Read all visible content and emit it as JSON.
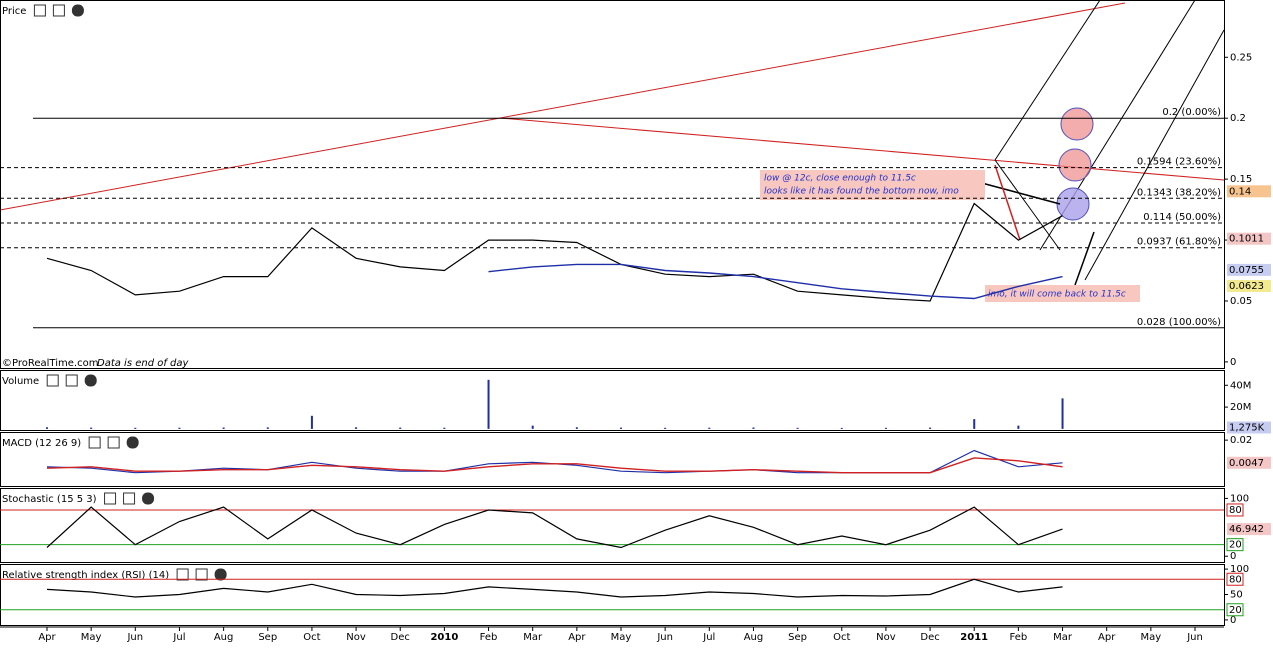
{
  "chart_data": [
    {
      "type": "line",
      "title": "Price",
      "source": "©ProRealTime.com",
      "note": "Data is end of day",
      "categories": [
        "Apr",
        "May",
        "Jun",
        "Jul",
        "Aug",
        "Sep",
        "Oct",
        "Nov",
        "Dec",
        "2010",
        "Feb",
        "Mar",
        "Apr",
        "May",
        "Jun",
        "Jul",
        "Aug",
        "Sep",
        "Oct",
        "Nov",
        "Dec",
        "2011",
        "Feb",
        "Mar",
        "Apr",
        "May",
        "Jun"
      ],
      "ylim": [
        -0.005,
        0.297
      ],
      "yticks": [
        0,
        0.05,
        0.1,
        0.15,
        0.2,
        0.25
      ],
      "series": [
        {
          "color": "#000000",
          "values": [
            0.085,
            0.075,
            0.055,
            0.058,
            0.07,
            0.07,
            0.11,
            0.085,
            0.078,
            0.075,
            0.1,
            0.1,
            0.098,
            0.08,
            0.072,
            0.07,
            0.072,
            0.058,
            0.055,
            0.052,
            0.05,
            0.13,
            0.1,
            0.12,
            null,
            null,
            null
          ]
        },
        {
          "color": "#1f2fa8",
          "values": [
            null,
            null,
            null,
            null,
            null,
            null,
            null,
            null,
            null,
            null,
            0.074,
            0.078,
            0.08,
            0.08,
            0.075,
            0.073,
            0.07,
            0.065,
            0.06,
            0.057,
            0.054,
            0.052,
            0.062,
            0.07,
            null,
            null,
            null
          ]
        }
      ],
      "fib_levels": [
        {
          "value": 0.2,
          "label": "0.2 (0.00%)"
        },
        {
          "value": 0.1594,
          "label": "0.1594 (23.60%)"
        },
        {
          "value": 0.1343,
          "label": "0.1343 (38.20%)"
        },
        {
          "value": 0.114,
          "label": "0.114 (50.00%)"
        },
        {
          "value": 0.0937,
          "label": "0.0937 (61.80%)"
        },
        {
          "value": 0.028,
          "label": "0.028 (100.00%)"
        }
      ],
      "last_values": [
        {
          "value": 0.14,
          "color": "#f7c48f"
        },
        {
          "value": 0.1011,
          "color": "#f4c6c6"
        },
        {
          "value": 0.0755,
          "color": "#c7cdf2"
        },
        {
          "value": 0.0623,
          "color": "#f3e98f"
        }
      ],
      "annotations": [
        "low @ 12c, close enough to 11.5c",
        "looks like it has found the bottom now, imo",
        "imo, it will come back to 11.5c"
      ]
    },
    {
      "type": "bar",
      "title": "Volume",
      "color": "#1f2fa8",
      "values": [
        1500000,
        1200000,
        1000000,
        1100000,
        1300000,
        1400000,
        12000000,
        1500000,
        1200000,
        1100000,
        45000000,
        3000000,
        1500000,
        1200000,
        1000000,
        1100000,
        1300000,
        1000000,
        900000,
        1000000,
        1200000,
        9000000,
        3000000,
        28000000,
        null,
        null,
        null
      ],
      "ylim": [
        -1000000,
        54000000
      ],
      "yticks": [
        {
          "value": 20000000,
          "label": "20M"
        },
        {
          "value": 40000000,
          "label": "40M"
        }
      ],
      "last_values": [
        {
          "value": 1275000,
          "label": "1,275K",
          "color": "#c7cdf2"
        }
      ]
    },
    {
      "type": "line",
      "title": "MACD (12 26 9)",
      "ylim": [
        -0.011,
        0.0255
      ],
      "yticks": [
        0.02
      ],
      "series": [
        {
          "color": "#1f2fa8",
          "values": [
            0.002,
            0.001,
            -0.002,
            -0.001,
            0.001,
            0.0,
            0.005,
            0.001,
            -0.001,
            -0.001,
            0.004,
            0.005,
            0.003,
            -0.001,
            -0.002,
            -0.001,
            0.0,
            -0.002,
            -0.002,
            -0.002,
            -0.002,
            0.013,
            0.002,
            0.0047,
            null,
            null,
            null
          ]
        },
        {
          "color": "#d02020",
          "values": [
            0.001,
            0.002,
            -0.001,
            -0.001,
            0.0,
            0.0,
            0.003,
            0.002,
            0.0,
            -0.001,
            0.002,
            0.004,
            0.004,
            0.001,
            -0.001,
            -0.001,
            0.0,
            -0.001,
            -0.002,
            -0.002,
            -0.002,
            0.008,
            0.006,
            0.002,
            null,
            null,
            null
          ]
        }
      ],
      "last_values": [
        {
          "value": 0.0047,
          "color": "#f4c6c6"
        }
      ]
    },
    {
      "type": "line",
      "title": "Stochastic (15 5 3)",
      "ylim": [
        -10,
        118
      ],
      "yticks": [
        0,
        100
      ],
      "hlines": [
        {
          "value": 80,
          "color": "#d02020"
        },
        {
          "value": 20,
          "color": "#20a020"
        }
      ],
      "series": [
        {
          "color": "#000000",
          "values": [
            15,
            85,
            20,
            60,
            85,
            30,
            80,
            40,
            20,
            55,
            80,
            75,
            30,
            15,
            45,
            70,
            50,
            20,
            35,
            20,
            45,
            85,
            20,
            46.942,
            null,
            null,
            null
          ]
        }
      ],
      "last_values": [
        {
          "value": 46.942,
          "color": "#f4c6c6"
        }
      ]
    },
    {
      "type": "line",
      "title": "Relative strength index (RSI) (14)",
      "ylim": [
        -10,
        110
      ],
      "yticks": [
        0,
        50,
        100
      ],
      "hlines": [
        {
          "value": 80,
          "color": "#d02020"
        },
        {
          "value": 20,
          "color": "#20a020"
        }
      ],
      "series": [
        {
          "color": "#000000",
          "values": [
            60,
            55,
            45,
            50,
            62,
            55,
            70,
            50,
            48,
            52,
            65,
            60,
            55,
            45,
            48,
            55,
            52,
            45,
            48,
            47,
            50,
            80,
            55,
            65,
            null,
            null,
            null
          ]
        }
      ]
    }
  ]
}
